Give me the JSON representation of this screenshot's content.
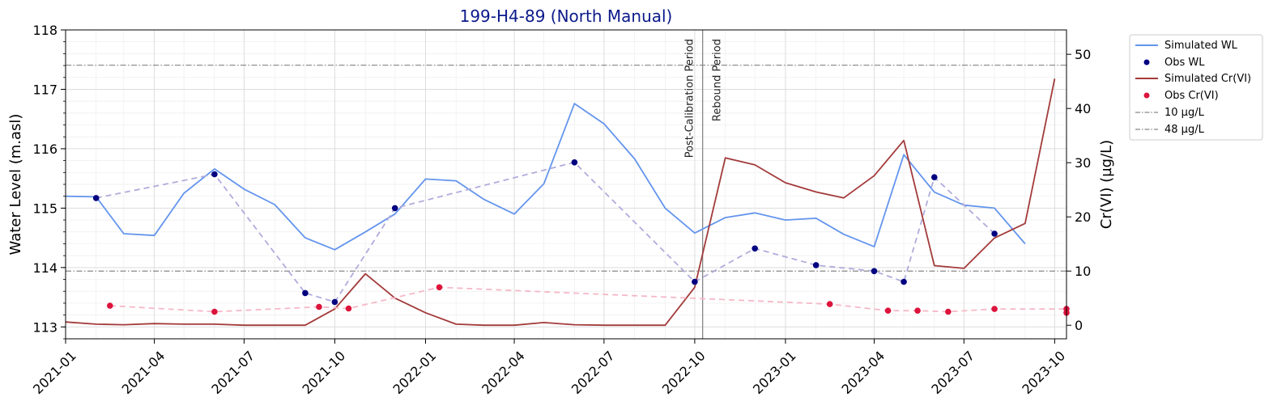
{
  "chart_data": {
    "type": "line",
    "title": "199-H4-89 (North Manual)",
    "xlabel": "",
    "ylabel_left": "Water Level (m.asl)",
    "ylabel_right": "Cr(VI) (µg/L)",
    "x_range": [
      "2021-01-01",
      "2023-10-13"
    ],
    "ylim_left": [
      112.8,
      118
    ],
    "ylim_right": [
      -2.5,
      54.5
    ],
    "x_ticks": [
      "2021-01",
      "2021-04",
      "2021-07",
      "2021-10",
      "2022-01",
      "2022-04",
      "2022-07",
      "2022-10",
      "2023-01",
      "2023-04",
      "2023-07",
      "2023-10"
    ],
    "y_ticks_left": [
      113,
      114,
      115,
      116,
      117,
      118
    ],
    "y_ticks_right": [
      0,
      10,
      20,
      30,
      40,
      50
    ],
    "grid": true,
    "legend_position": "outside-top-right",
    "series": [
      {
        "name": "Simulated WL",
        "kind": "line",
        "axis": "left",
        "color": "#6495ed",
        "x": [
          "2021-01-01",
          "2021-02-01",
          "2021-03-01",
          "2021-04-01",
          "2021-05-01",
          "2021-06-01",
          "2021-07-01",
          "2021-08-01",
          "2021-09-01",
          "2021-10-01",
          "2021-11-01",
          "2021-12-01",
          "2022-01-01",
          "2022-02-01",
          "2022-03-01",
          "2022-04-01",
          "2022-05-01",
          "2022-06-01",
          "2022-07-01",
          "2022-08-01",
          "2022-09-01",
          "2022-10-01",
          "2022-11-01",
          "2022-12-01",
          "2023-01-01",
          "2023-02-01",
          "2023-03-01",
          "2023-04-01",
          "2023-05-01",
          "2023-06-01",
          "2023-07-01",
          "2023-08-01",
          "2023-09-01"
        ],
        "y": [
          115.2,
          115.19,
          114.57,
          114.54,
          115.25,
          115.66,
          115.32,
          115.06,
          114.5,
          114.3,
          114.6,
          114.9,
          115.49,
          115.46,
          115.15,
          114.9,
          115.41,
          116.76,
          116.42,
          115.83,
          115.0,
          114.58,
          114.84,
          114.92,
          114.8,
          114.83,
          114.56,
          114.35,
          115.9,
          115.27,
          115.05,
          115.0,
          114.4
        ]
      },
      {
        "name": "Obs WL",
        "kind": "scatter",
        "axis": "left",
        "color": "#000080",
        "connector_color": "#b0acdc",
        "x": [
          "2021-02-01",
          "2021-06-01",
          "2021-09-01",
          "2021-10-01",
          "2021-12-01",
          "2022-06-01",
          "2022-10-01",
          "2022-12-01",
          "2023-02-01",
          "2023-04-01",
          "2023-05-01",
          "2023-06-01",
          "2023-08-01"
        ],
        "y": [
          115.17,
          115.57,
          113.57,
          113.42,
          115.0,
          115.77,
          113.76,
          114.32,
          114.04,
          113.94,
          113.76,
          115.52,
          114.57
        ]
      },
      {
        "name": "Simulated Cr(VI)",
        "kind": "line",
        "axis": "right",
        "color": "#a33a3a",
        "x": [
          "2021-01-01",
          "2021-02-01",
          "2021-03-01",
          "2021-04-01",
          "2021-05-01",
          "2021-06-01",
          "2021-07-01",
          "2021-08-01",
          "2021-09-01",
          "2021-10-01",
          "2021-11-01",
          "2021-12-01",
          "2022-01-01",
          "2022-02-01",
          "2022-03-01",
          "2022-04-01",
          "2022-05-01",
          "2022-06-01",
          "2022-07-01",
          "2022-08-01",
          "2022-09-01",
          "2022-10-01",
          "2022-11-01",
          "2022-12-01",
          "2023-01-01",
          "2023-02-01",
          "2023-03-01",
          "2023-04-01",
          "2023-05-01",
          "2023-06-01",
          "2023-07-01",
          "2023-08-01",
          "2023-09-01",
          "2023-10-01"
        ],
        "y": [
          0.6,
          0.2,
          0.1,
          0.3,
          0.2,
          0.2,
          0.0,
          0.0,
          0.0,
          3.0,
          9.5,
          5.0,
          2.3,
          0.2,
          0.0,
          0.0,
          0.5,
          0.1,
          0.0,
          0.0,
          0.0,
          7.0,
          30.9,
          29.6,
          26.3,
          24.6,
          23.5,
          27.6,
          34.1,
          11.0,
          10.5,
          16.1,
          18.8,
          45.5
        ]
      },
      {
        "name": "Obs Cr(VI)",
        "kind": "scatter",
        "axis": "right",
        "color": "#dc143c",
        "connector_color": "#f5b8c6",
        "x": [
          "2021-02-15",
          "2021-06-01",
          "2021-09-15",
          "2021-10-15",
          "2022-01-15",
          "2023-02-15",
          "2023-04-15",
          "2023-05-15",
          "2023-06-15",
          "2023-08-01",
          "2023-10-13",
          "2023-10-13"
        ],
        "y": [
          3.6,
          2.5,
          3.4,
          3.1,
          7.0,
          3.9,
          2.7,
          2.7,
          2.5,
          3.0,
          3.0,
          2.3
        ]
      }
    ],
    "hlines": [
      {
        "name": "10 µg/L",
        "axis": "right",
        "y": 10,
        "color": "#888888",
        "style": "dashdot"
      },
      {
        "name": "48 µg/L",
        "axis": "right",
        "y": 48,
        "color": "#888888",
        "style": "dashdot"
      }
    ],
    "vline": {
      "x": "2022-10-09",
      "color": "#888888"
    },
    "annotations": [
      "Post-Calibration Period",
      "Rebound Period"
    ]
  }
}
